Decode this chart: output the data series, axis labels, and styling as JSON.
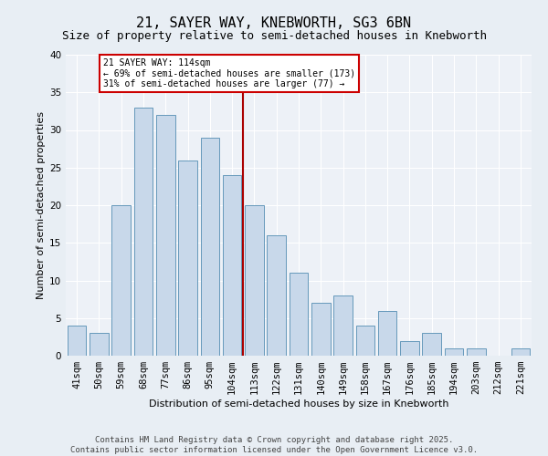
{
  "title": "21, SAYER WAY, KNEBWORTH, SG3 6BN",
  "subtitle": "Size of property relative to semi-detached houses in Knebworth",
  "xlabel": "Distribution of semi-detached houses by size in Knebworth",
  "ylabel": "Number of semi-detached properties",
  "categories": [
    "41sqm",
    "50sqm",
    "59sqm",
    "68sqm",
    "77sqm",
    "86sqm",
    "95sqm",
    "104sqm",
    "113sqm",
    "122sqm",
    "131sqm",
    "140sqm",
    "149sqm",
    "158sqm",
    "167sqm",
    "176sqm",
    "185sqm",
    "194sqm",
    "203sqm",
    "212sqm",
    "221sqm"
  ],
  "values": [
    4,
    3,
    20,
    33,
    32,
    26,
    29,
    24,
    20,
    16,
    11,
    7,
    8,
    4,
    6,
    2,
    3,
    1,
    1,
    0,
    1
  ],
  "bar_color": "#c8d8ea",
  "bar_edge_color": "#6699bb",
  "vline_index": 8,
  "vline_color": "#aa0000",
  "annotation_title": "21 SAYER WAY: 114sqm",
  "annotation_line1": "← 69% of semi-detached houses are smaller (173)",
  "annotation_line2": "31% of semi-detached houses are larger (77) →",
  "annotation_box_color": "#cc0000",
  "ylim": [
    0,
    40
  ],
  "yticks": [
    0,
    5,
    10,
    15,
    20,
    25,
    30,
    35,
    40
  ],
  "bg_color": "#e8eef4",
  "plot_bg_color": "#edf1f7",
  "footer": "Contains HM Land Registry data © Crown copyright and database right 2025.\nContains public sector information licensed under the Open Government Licence v3.0.",
  "title_fontsize": 11,
  "subtitle_fontsize": 9,
  "axis_label_fontsize": 8,
  "tick_fontsize": 7.5,
  "footer_fontsize": 6.5
}
